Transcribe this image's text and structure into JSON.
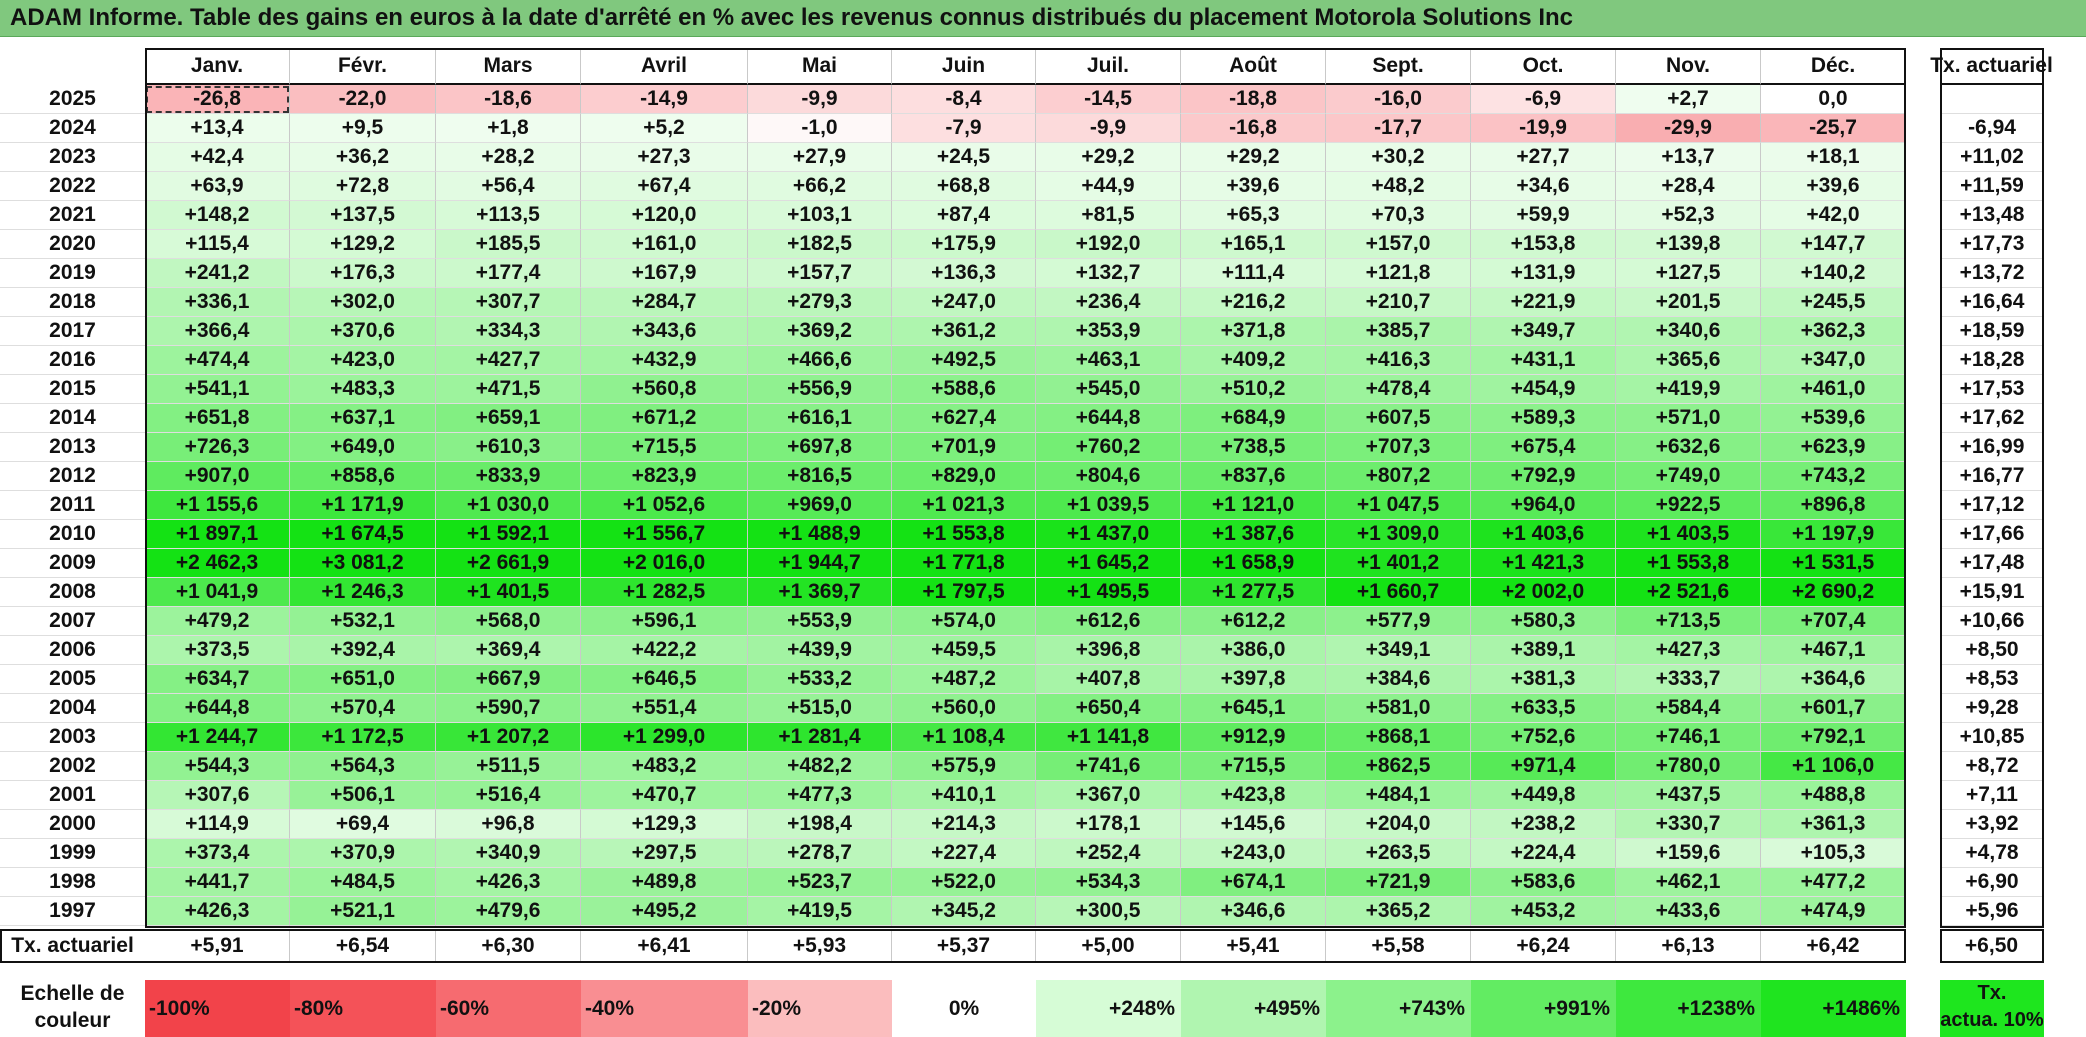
{
  "title": "ADAM Informe. Table des gains en euros à la date d'arrêté en % avec les revenus connus distribués du placement Motorola Solutions Inc",
  "chart_data": {
    "type": "table",
    "columns": [
      "Janv.",
      "Févr.",
      "Mars",
      "Avril",
      "Mai",
      "Juin",
      "Juil.",
      "Août",
      "Sept.",
      "Oct.",
      "Nov.",
      "Déc."
    ],
    "extra_column": "Tx. actuariel",
    "rows": [
      {
        "year": "2025",
        "values": [
          "-26,8",
          "-22,0",
          "-18,6",
          "-14,9",
          "-9,9",
          "-8,4",
          "-14,5",
          "-18,8",
          "-16,0",
          "-6,9",
          "+2,7",
          "0,0"
        ],
        "rate": ""
      },
      {
        "year": "2024",
        "values": [
          "+13,4",
          "+9,5",
          "+1,8",
          "+5,2",
          "-1,0",
          "-7,9",
          "-9,9",
          "-16,8",
          "-17,7",
          "-19,9",
          "-29,9",
          "-25,7"
        ],
        "rate": "-6,94"
      },
      {
        "year": "2023",
        "values": [
          "+42,4",
          "+36,2",
          "+28,2",
          "+27,3",
          "+27,9",
          "+24,5",
          "+29,2",
          "+29,2",
          "+30,2",
          "+27,7",
          "+13,7",
          "+18,1"
        ],
        "rate": "+11,02"
      },
      {
        "year": "2022",
        "values": [
          "+63,9",
          "+72,8",
          "+56,4",
          "+67,4",
          "+66,2",
          "+68,8",
          "+44,9",
          "+39,6",
          "+48,2",
          "+34,6",
          "+28,4",
          "+39,6"
        ],
        "rate": "+11,59"
      },
      {
        "year": "2021",
        "values": [
          "+148,2",
          "+137,5",
          "+113,5",
          "+120,0",
          "+103,1",
          "+87,4",
          "+81,5",
          "+65,3",
          "+70,3",
          "+59,9",
          "+52,3",
          "+42,0"
        ],
        "rate": "+13,48"
      },
      {
        "year": "2020",
        "values": [
          "+115,4",
          "+129,2",
          "+185,5",
          "+161,0",
          "+182,5",
          "+175,9",
          "+192,0",
          "+165,1",
          "+157,0",
          "+153,8",
          "+139,8",
          "+147,7"
        ],
        "rate": "+17,73"
      },
      {
        "year": "2019",
        "values": [
          "+241,2",
          "+176,3",
          "+177,4",
          "+167,9",
          "+157,7",
          "+136,3",
          "+132,7",
          "+111,4",
          "+121,8",
          "+131,9",
          "+127,5",
          "+140,2"
        ],
        "rate": "+13,72"
      },
      {
        "year": "2018",
        "values": [
          "+336,1",
          "+302,0",
          "+307,7",
          "+284,7",
          "+279,3",
          "+247,0",
          "+236,4",
          "+216,2",
          "+210,7",
          "+221,9",
          "+201,5",
          "+245,5"
        ],
        "rate": "+16,64"
      },
      {
        "year": "2017",
        "values": [
          "+366,4",
          "+370,6",
          "+334,3",
          "+343,6",
          "+369,2",
          "+361,2",
          "+353,9",
          "+371,8",
          "+385,7",
          "+349,7",
          "+340,6",
          "+362,3"
        ],
        "rate": "+18,59"
      },
      {
        "year": "2016",
        "values": [
          "+474,4",
          "+423,0",
          "+427,7",
          "+432,9",
          "+466,6",
          "+492,5",
          "+463,1",
          "+409,2",
          "+416,3",
          "+431,1",
          "+365,6",
          "+347,0"
        ],
        "rate": "+18,28"
      },
      {
        "year": "2015",
        "values": [
          "+541,1",
          "+483,3",
          "+471,5",
          "+560,8",
          "+556,9",
          "+588,6",
          "+545,0",
          "+510,2",
          "+478,4",
          "+454,9",
          "+419,9",
          "+461,0"
        ],
        "rate": "+17,53"
      },
      {
        "year": "2014",
        "values": [
          "+651,8",
          "+637,1",
          "+659,1",
          "+671,2",
          "+616,1",
          "+627,4",
          "+644,8",
          "+684,9",
          "+607,5",
          "+589,3",
          "+571,0",
          "+539,6"
        ],
        "rate": "+17,62"
      },
      {
        "year": "2013",
        "values": [
          "+726,3",
          "+649,0",
          "+610,3",
          "+715,5",
          "+697,8",
          "+701,9",
          "+760,2",
          "+738,5",
          "+707,3",
          "+675,4",
          "+632,6",
          "+623,9"
        ],
        "rate": "+16,99"
      },
      {
        "year": "2012",
        "values": [
          "+907,0",
          "+858,6",
          "+833,9",
          "+823,9",
          "+816,5",
          "+829,0",
          "+804,6",
          "+837,6",
          "+807,2",
          "+792,9",
          "+749,0",
          "+743,2"
        ],
        "rate": "+16,77"
      },
      {
        "year": "2011",
        "values": [
          "+1 155,6",
          "+1 171,9",
          "+1 030,0",
          "+1 052,6",
          "+969,0",
          "+1 021,3",
          "+1 039,5",
          "+1 121,0",
          "+1 047,5",
          "+964,0",
          "+922,5",
          "+896,8"
        ],
        "rate": "+17,12"
      },
      {
        "year": "2010",
        "values": [
          "+1 897,1",
          "+1 674,5",
          "+1 592,1",
          "+1 556,7",
          "+1 488,9",
          "+1 553,8",
          "+1 437,0",
          "+1 387,6",
          "+1 309,0",
          "+1 403,6",
          "+1 403,5",
          "+1 197,9"
        ],
        "rate": "+17,66"
      },
      {
        "year": "2009",
        "values": [
          "+2 462,3",
          "+3 081,2",
          "+2 661,9",
          "+2 016,0",
          "+1 944,7",
          "+1 771,8",
          "+1 645,2",
          "+1 658,9",
          "+1 401,2",
          "+1 421,3",
          "+1 553,8",
          "+1 531,5"
        ],
        "rate": "+17,48"
      },
      {
        "year": "2008",
        "values": [
          "+1 041,9",
          "+1 246,3",
          "+1 401,5",
          "+1 282,5",
          "+1 369,7",
          "+1 797,5",
          "+1 495,5",
          "+1 277,5",
          "+1 660,7",
          "+2 002,0",
          "+2 521,6",
          "+2 690,2"
        ],
        "rate": "+15,91"
      },
      {
        "year": "2007",
        "values": [
          "+479,2",
          "+532,1",
          "+568,0",
          "+596,1",
          "+553,9",
          "+574,0",
          "+612,6",
          "+612,2",
          "+577,9",
          "+580,3",
          "+713,5",
          "+707,4"
        ],
        "rate": "+10,66"
      },
      {
        "year": "2006",
        "values": [
          "+373,5",
          "+392,4",
          "+369,4",
          "+422,2",
          "+439,9",
          "+459,5",
          "+396,8",
          "+386,0",
          "+349,1",
          "+389,1",
          "+427,3",
          "+467,1"
        ],
        "rate": "+8,50"
      },
      {
        "year": "2005",
        "values": [
          "+634,7",
          "+651,0",
          "+667,9",
          "+646,5",
          "+533,2",
          "+487,2",
          "+407,8",
          "+397,8",
          "+384,6",
          "+381,3",
          "+333,7",
          "+364,6"
        ],
        "rate": "+8,53"
      },
      {
        "year": "2004",
        "values": [
          "+644,8",
          "+570,4",
          "+590,7",
          "+551,4",
          "+515,0",
          "+560,0",
          "+650,4",
          "+645,1",
          "+581,0",
          "+633,5",
          "+584,4",
          "+601,7"
        ],
        "rate": "+9,28"
      },
      {
        "year": "2003",
        "values": [
          "+1 244,7",
          "+1 172,5",
          "+1 207,2",
          "+1 299,0",
          "+1 281,4",
          "+1 108,4",
          "+1 141,8",
          "+912,9",
          "+868,1",
          "+752,6",
          "+746,1",
          "+792,1"
        ],
        "rate": "+10,85"
      },
      {
        "year": "2002",
        "values": [
          "+544,3",
          "+564,3",
          "+511,5",
          "+483,2",
          "+482,2",
          "+575,9",
          "+741,6",
          "+715,5",
          "+862,5",
          "+971,4",
          "+780,0",
          "+1 106,0"
        ],
        "rate": "+8,72"
      },
      {
        "year": "2001",
        "values": [
          "+307,6",
          "+506,1",
          "+516,4",
          "+470,7",
          "+477,3",
          "+410,1",
          "+367,0",
          "+423,8",
          "+484,1",
          "+449,8",
          "+437,5",
          "+488,8"
        ],
        "rate": "+7,11"
      },
      {
        "year": "2000",
        "values": [
          "+114,9",
          "+69,4",
          "+96,8",
          "+129,3",
          "+198,4",
          "+214,3",
          "+178,1",
          "+145,6",
          "+204,0",
          "+238,2",
          "+330,7",
          "+361,3"
        ],
        "rate": "+3,92"
      },
      {
        "year": "1999",
        "values": [
          "+373,4",
          "+370,9",
          "+340,9",
          "+297,5",
          "+278,7",
          "+227,4",
          "+252,4",
          "+243,0",
          "+263,5",
          "+224,4",
          "+159,6",
          "+105,3"
        ],
        "rate": "+4,78"
      },
      {
        "year": "1998",
        "values": [
          "+441,7",
          "+484,5",
          "+426,3",
          "+489,8",
          "+523,7",
          "+522,0",
          "+534,3",
          "+674,1",
          "+721,9",
          "+583,6",
          "+462,1",
          "+477,2"
        ],
        "rate": "+6,90"
      },
      {
        "year": "1997",
        "values": [
          "+426,3",
          "+521,1",
          "+479,6",
          "+495,2",
          "+419,5",
          "+345,2",
          "+300,5",
          "+346,6",
          "+365,2",
          "+453,2",
          "+433,6",
          "+474,9"
        ],
        "rate": "+5,96"
      }
    ],
    "footer": {
      "label": "Tx. actuariel",
      "values": [
        "+5,91",
        "+6,54",
        "+6,30",
        "+6,41",
        "+5,93",
        "+5,37",
        "+5,00",
        "+5,41",
        "+5,58",
        "+6,24",
        "+6,13",
        "+6,42"
      ],
      "rate": "+6,50"
    },
    "legend": {
      "label": "Echelle de couleur",
      "label_lines": [
        "Echelle de",
        "couleur"
      ],
      "steps": [
        {
          "text": "-100%",
          "color": "#f2434a",
          "align": "left"
        },
        {
          "text": "-80%",
          "color": "#f45258",
          "align": "left"
        },
        {
          "text": "-60%",
          "color": "#f66b70",
          "align": "left"
        },
        {
          "text": "-40%",
          "color": "#f98e92",
          "align": "left"
        },
        {
          "text": "-20%",
          "color": "#fbbdbe",
          "align": "left"
        },
        {
          "text": "0%",
          "color": "#ffffff",
          "align": "center"
        },
        {
          "text": "+248%",
          "color": "#d6fcd6",
          "align": "right"
        },
        {
          "text": "+495%",
          "color": "#b0f5b0",
          "align": "right"
        },
        {
          "text": "+743%",
          "color": "#8cf28c",
          "align": "right"
        },
        {
          "text": "+991%",
          "color": "#62ec62",
          "align": "right"
        },
        {
          "text": "+1238%",
          "color": "#3ee83e",
          "align": "right"
        },
        {
          "text": "+1486%",
          "color": "#1fe41f",
          "align": "right"
        }
      ],
      "last_lines": [
        "Tx.",
        "actua. 10%"
      ],
      "last_color": "#1ee61e"
    },
    "scale_reference": {
      "negative": -100,
      "positive": 1486
    }
  }
}
